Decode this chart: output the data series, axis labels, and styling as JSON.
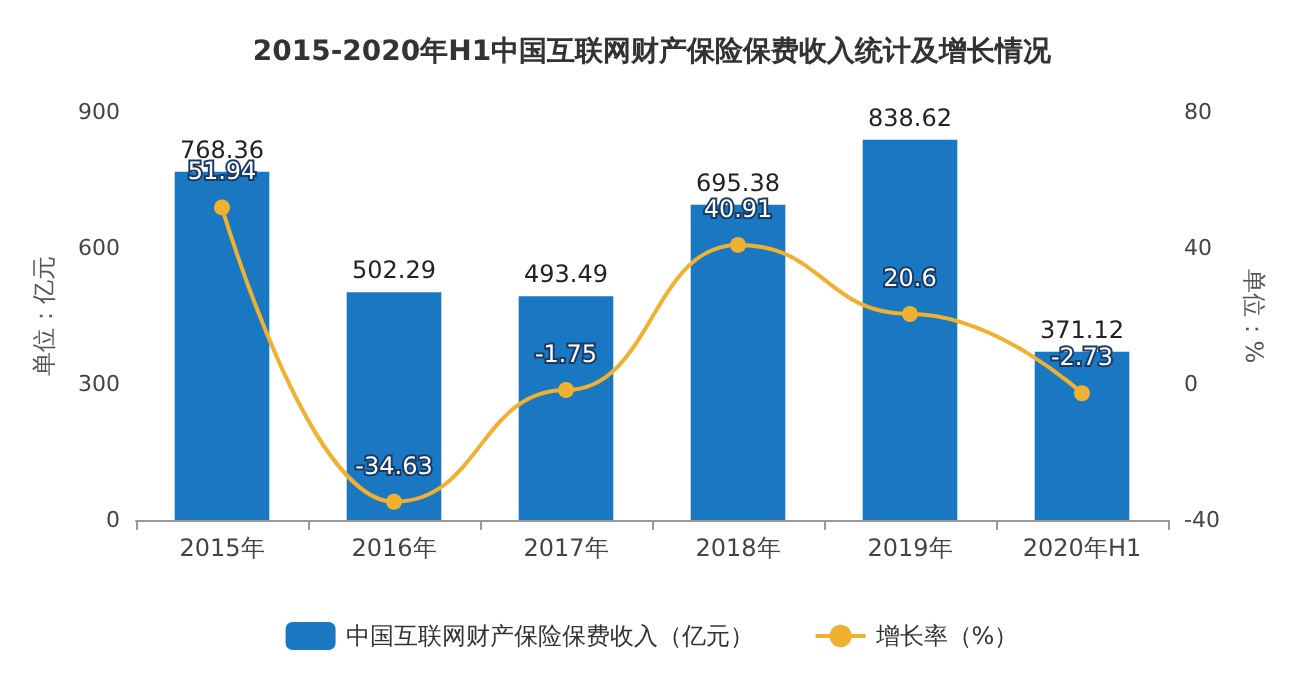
{
  "chart_data": {
    "type": "bar",
    "title": "2015-2020年H1中国互联网财产保险保费收入统计及增长情况",
    "categories": [
      "2015年",
      "2016年",
      "2017年",
      "2018年",
      "2019年",
      "2020年H1"
    ],
    "series": [
      {
        "name": "中国互联网财产保险保费收入（亿元）",
        "color": "#1a78c2",
        "values": [
          768.36,
          502.29,
          493.49,
          695.38,
          838.62,
          371.12
        ]
      },
      {
        "name": "增长率（%）",
        "type": "line",
        "axis": "y2",
        "color": "#f0b030",
        "values": [
          51.94,
          -34.63,
          -1.75,
          40.91,
          20.6,
          -2.73
        ]
      }
    ],
    "ylabel": "单位：亿元",
    "y2label": "单位：%",
    "ylim": [
      0,
      900
    ],
    "yticks": [
      0,
      300,
      600,
      900
    ],
    "y2lim": [
      -40,
      80
    ],
    "y2ticks": [
      -40,
      0,
      40,
      80
    ],
    "data_labels": true,
    "legend": "bottom",
    "marker": "circle",
    "grid": false
  }
}
